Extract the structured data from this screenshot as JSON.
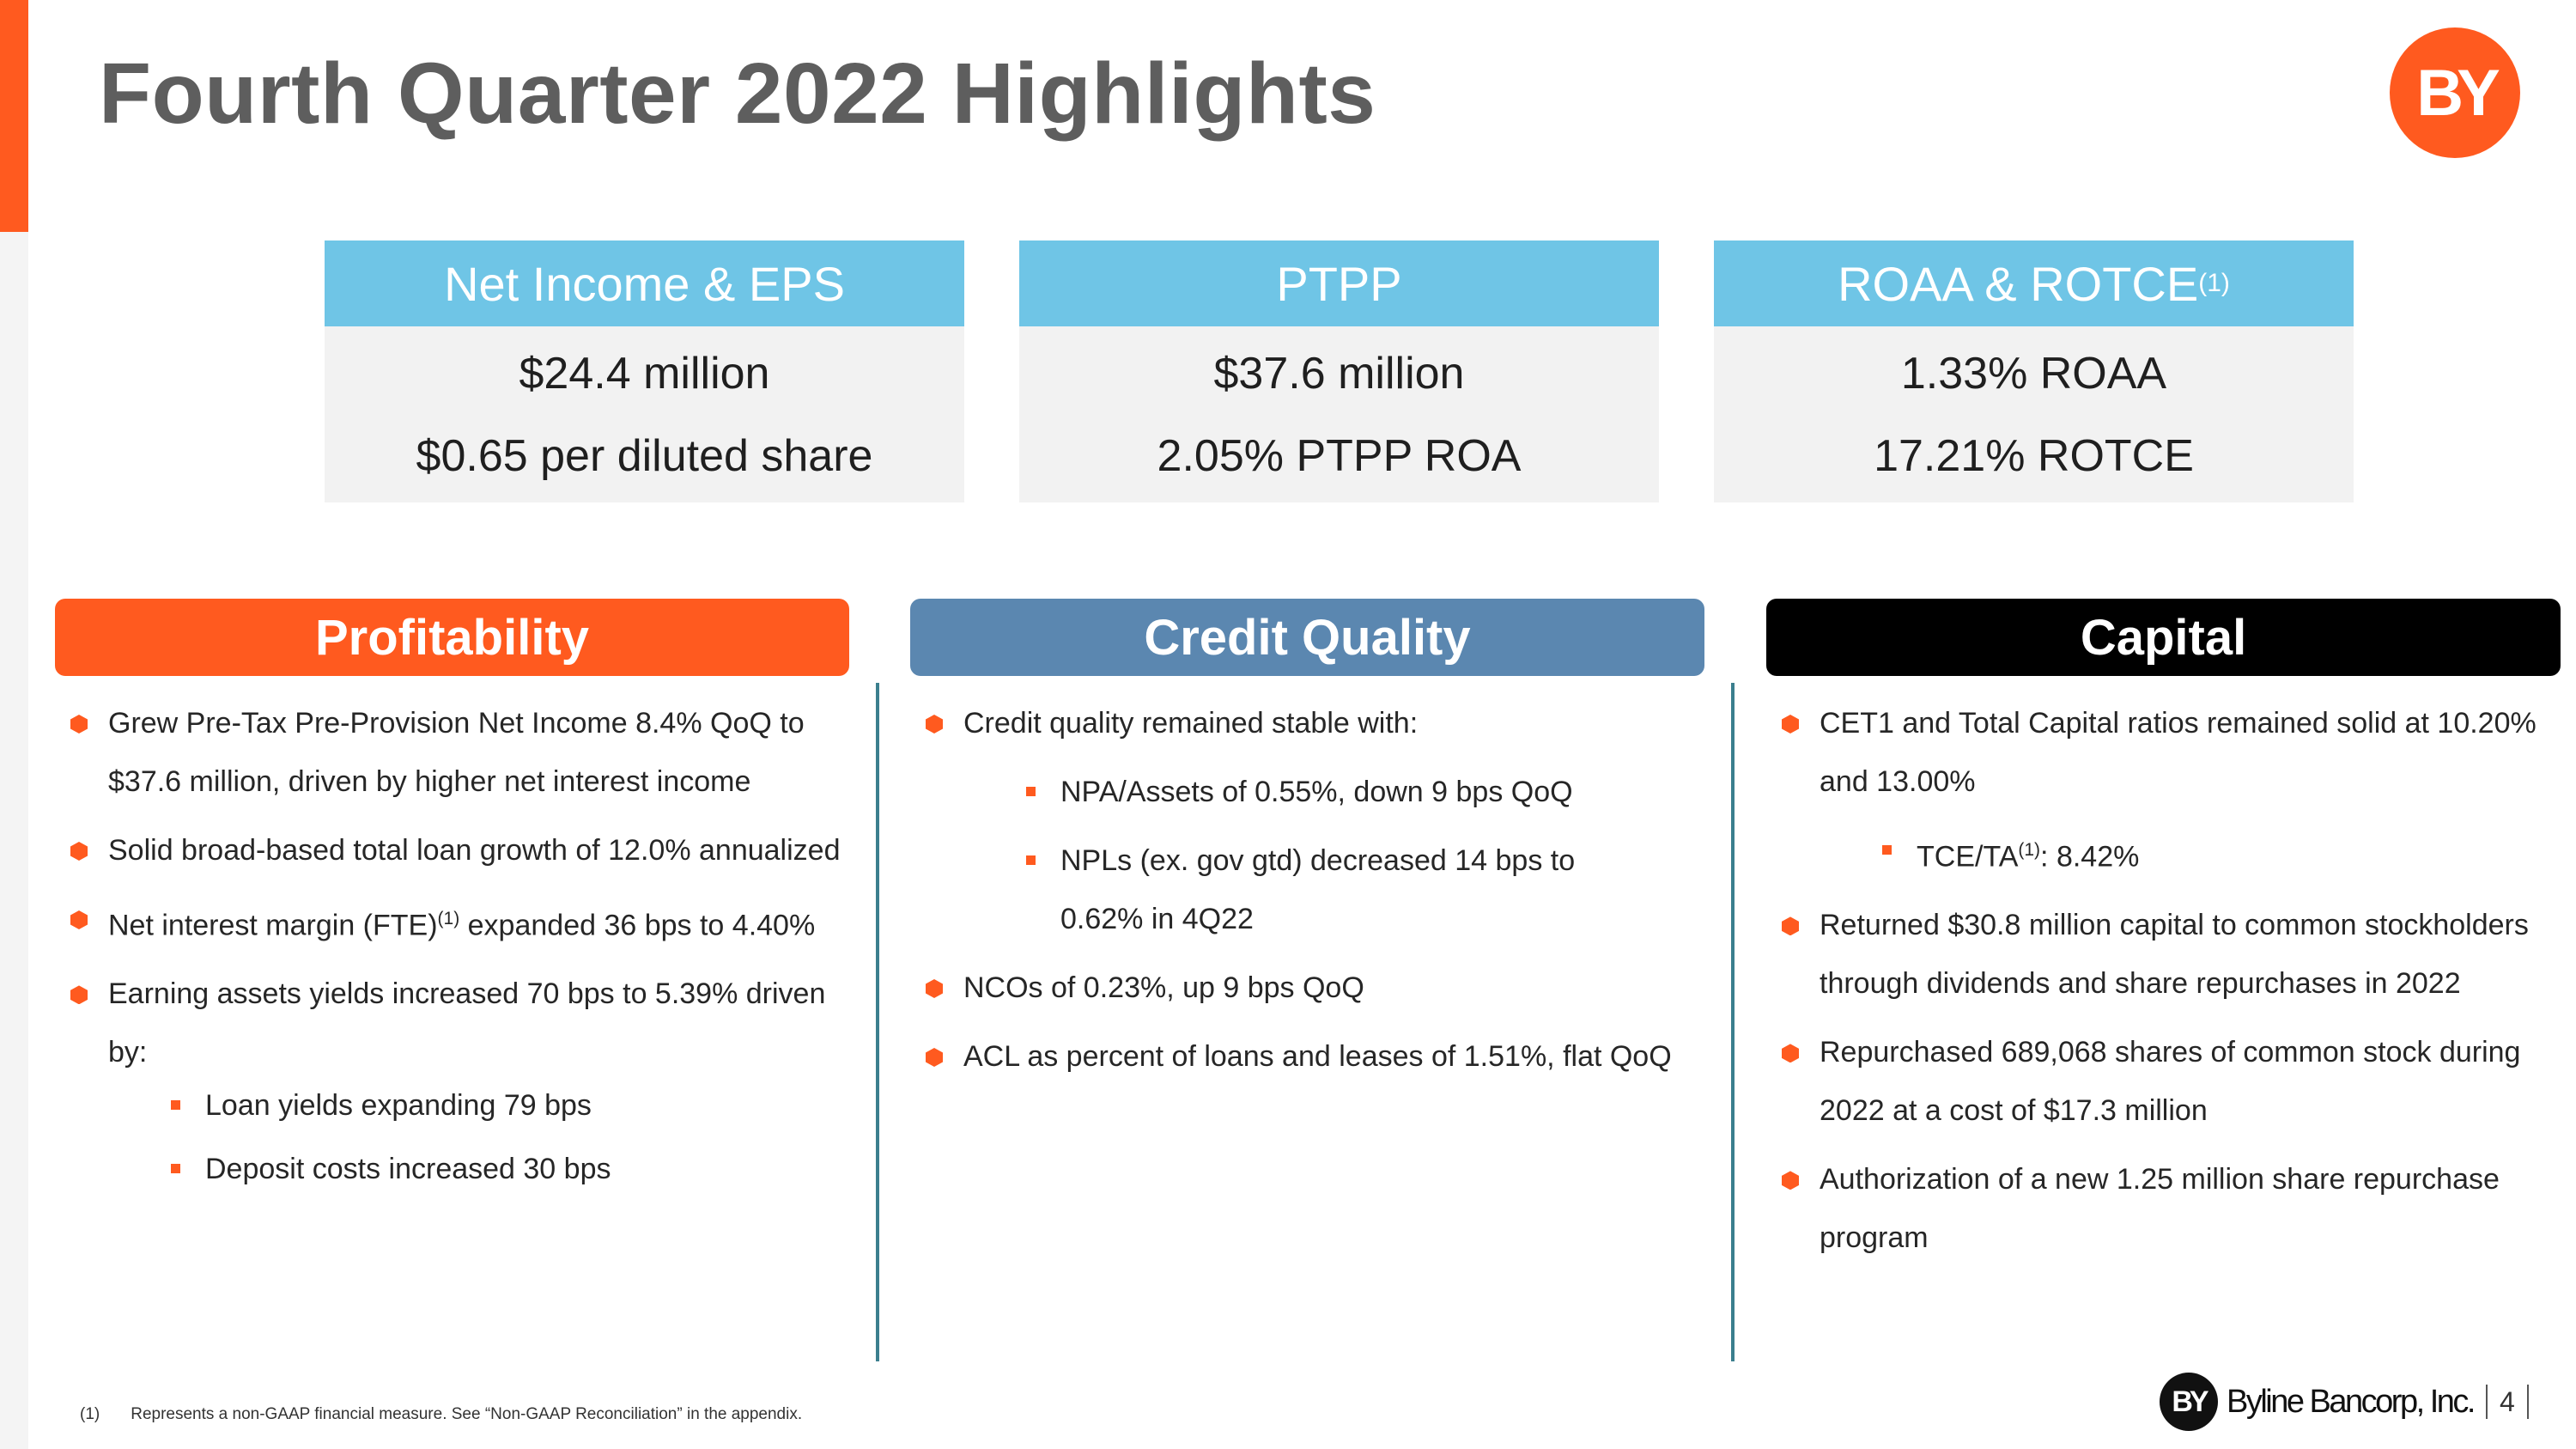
{
  "title": "Fourth Quarter 2022 Highlights",
  "logo_text": "BY",
  "kpis": [
    {
      "header": "Net Income & EPS",
      "header_sup": "",
      "line1": "$24.4 million",
      "line2": "$0.65 per diluted share"
    },
    {
      "header": "PTPP",
      "header_sup": "",
      "line1": "$37.6 million",
      "line2": "2.05% PTPP ROA"
    },
    {
      "header": "ROAA & ROTCE",
      "header_sup": "(1)",
      "line1": "1.33% ROAA",
      "line2": "17.21% ROTCE"
    }
  ],
  "sections": {
    "profitability": {
      "title": "Profitability",
      "bullet1": "Grew Pre-Tax Pre-Provision Net Income 8.4% QoQ to $37.6 million, driven by higher net interest income",
      "bullet2": "Solid broad-based total loan growth of 12.0% annualized",
      "bullet3_a": "Net interest margin (FTE)",
      "bullet3_sup": "(1)",
      "bullet3_b": " expanded 36 bps to 4.40%",
      "bullet4": "Earning assets yields increased 70 bps to 5.39% driven by:",
      "sub1": "Loan yields expanding 79 bps",
      "sub2": "Deposit costs increased 30 bps"
    },
    "credit_quality": {
      "title": "Credit Quality",
      "bullet1": "Credit quality remained stable with:",
      "sub1": "NPA/Assets of 0.55%, down 9 bps QoQ",
      "sub2": "NPLs (ex. gov gtd) decreased 14 bps to 0.62% in 4Q22",
      "bullet2": "NCOs of 0.23%, up 9 bps QoQ",
      "bullet3": "ACL as percent of loans and leases of 1.51%, flat QoQ"
    },
    "capital": {
      "title": "Capital",
      "bullet1": "CET1 and Total Capital ratios remained solid at 10.20% and 13.00%",
      "sub1_a": "TCE/TA",
      "sub1_sup": "(1)",
      "sub1_b": ": 8.42%",
      "bullet2": "Returned $30.8 million capital to common stockholders through dividends and share repurchases in 2022",
      "bullet3": "Repurchased 689,068 shares of common stock during 2022 at a cost of $17.3 million",
      "bullet4": "Authorization of a new 1.25 million share repurchase program"
    }
  },
  "footnote": {
    "marker": "(1)",
    "text": "Represents a non-GAAP financial measure.  See “Non-GAAP Reconciliation” in the appendix."
  },
  "brand": {
    "mark": "BY",
    "name": "Byline Bancorp, Inc.",
    "page": "4"
  },
  "colors": {
    "accent": "#FF5A1F",
    "kpi_header": "#6FC5E6",
    "credit_header": "#5B87B0",
    "capital_header": "#000000",
    "divider": "#3b7f8e"
  }
}
